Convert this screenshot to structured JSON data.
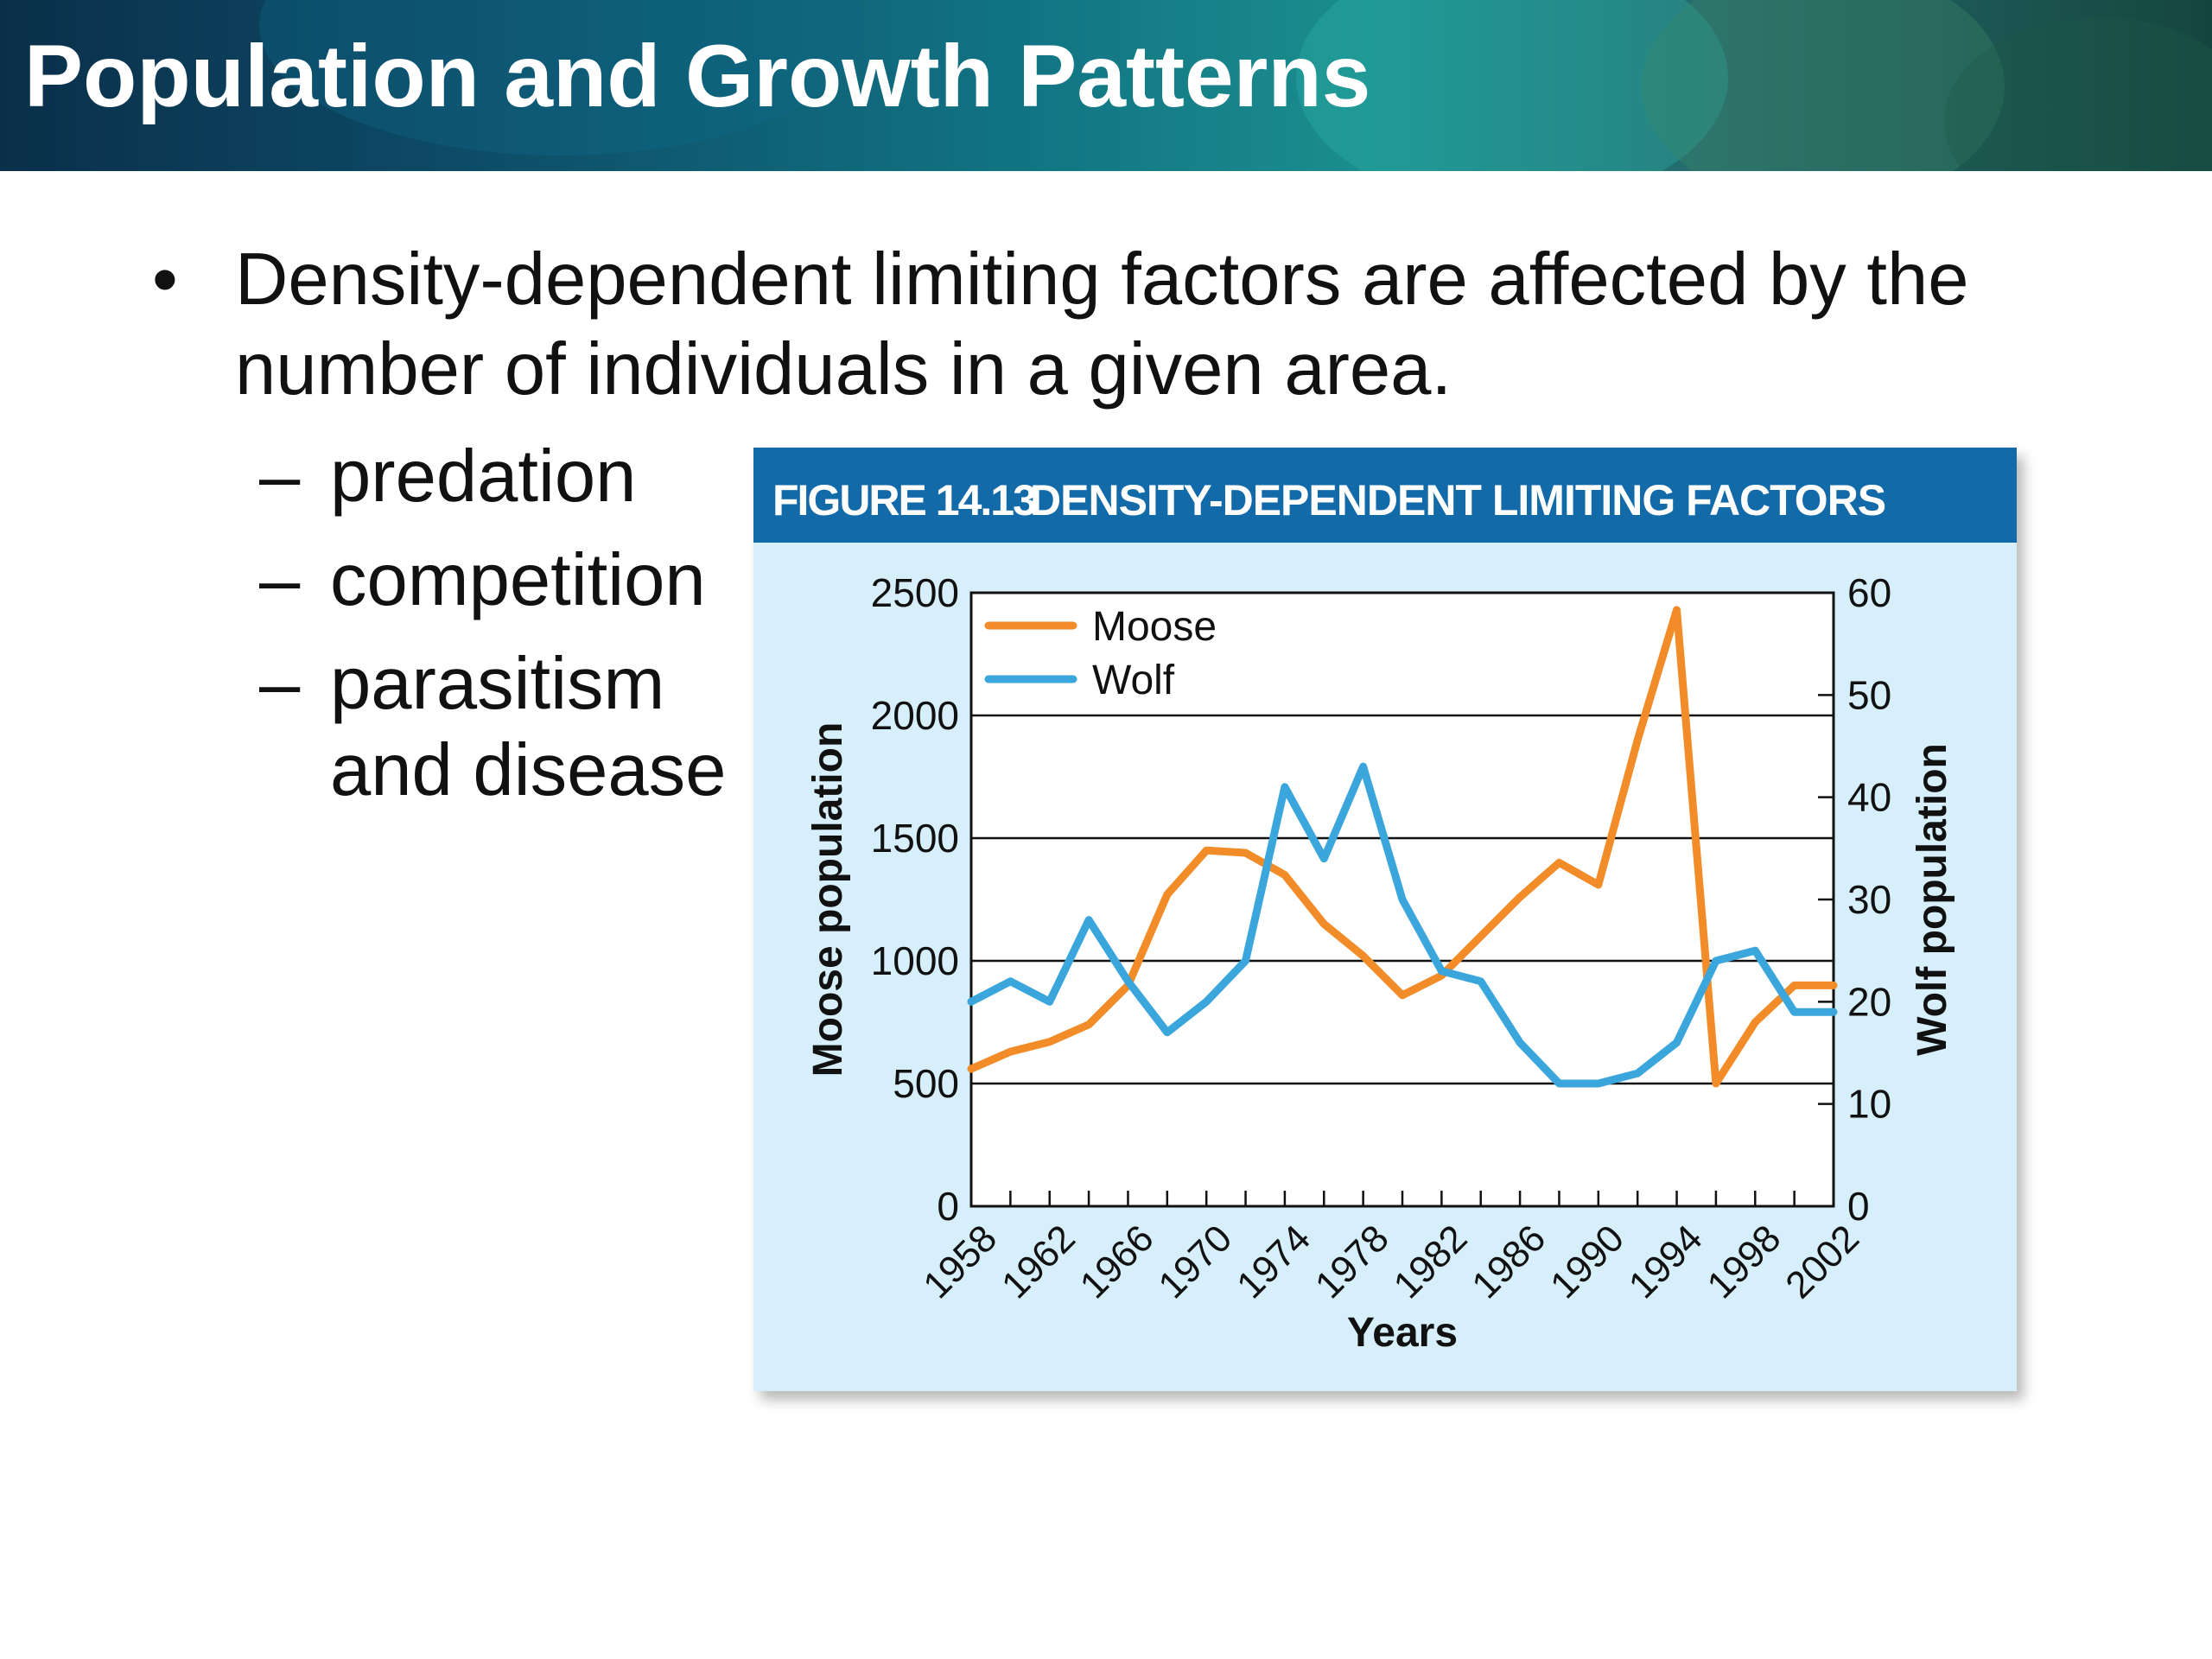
{
  "slide": {
    "title": "Population and Growth Patterns",
    "bullet_main": "Density-dependent limiting factors are affected by the number of individuals in a given area.",
    "sub_bullets": [
      "predation",
      "competition",
      "parasitism",
      "and disease"
    ]
  },
  "figure": {
    "number": "FIGURE 14.13",
    "title": "DENSITY-DEPENDENT LIMITING FACTORS"
  },
  "chart_data": {
    "type": "line",
    "xlabel": "Years",
    "ylabel": "Moose population",
    "ylabel_right": "Wolf population",
    "x_ticks": [
      "1958",
      "1962",
      "1966",
      "1970",
      "1974",
      "1978",
      "1982",
      "1986",
      "1990",
      "1994",
      "1998",
      "2002"
    ],
    "y_ticks_left": [
      "0",
      "500",
      "1000",
      "1500",
      "2000",
      "2500"
    ],
    "y_ticks_right": [
      "0",
      "10",
      "20",
      "30",
      "40",
      "50",
      "60"
    ],
    "ylim_left": [
      0,
      2500
    ],
    "ylim_right": [
      0,
      60
    ],
    "xlim": [
      1958,
      2002
    ],
    "grid": "horizontal",
    "legend_position": "top-left",
    "x": [
      1958,
      1960,
      1962,
      1964,
      1966,
      1968,
      1970,
      1972,
      1974,
      1976,
      1978,
      1980,
      1982,
      1984,
      1986,
      1988,
      1990,
      1992,
      1994,
      1996,
      1998,
      2000,
      2002
    ],
    "series": [
      {
        "name": "Moose",
        "axis": "left",
        "color": "#f28c28",
        "values": [
          560,
          630,
          670,
          740,
          900,
          1270,
          1450,
          1440,
          1350,
          1150,
          1020,
          860,
          940,
          1100,
          1260,
          1400,
          1310,
          1900,
          2430,
          500,
          750,
          900,
          900
        ]
      },
      {
        "name": "Wolf",
        "axis": "right",
        "color": "#3aa6dc",
        "values": [
          20,
          22,
          20,
          28,
          22,
          17,
          20,
          24,
          41,
          34,
          43,
          30,
          23,
          22,
          16,
          12,
          12,
          13,
          16,
          24,
          25,
          19,
          19
        ]
      }
    ]
  }
}
